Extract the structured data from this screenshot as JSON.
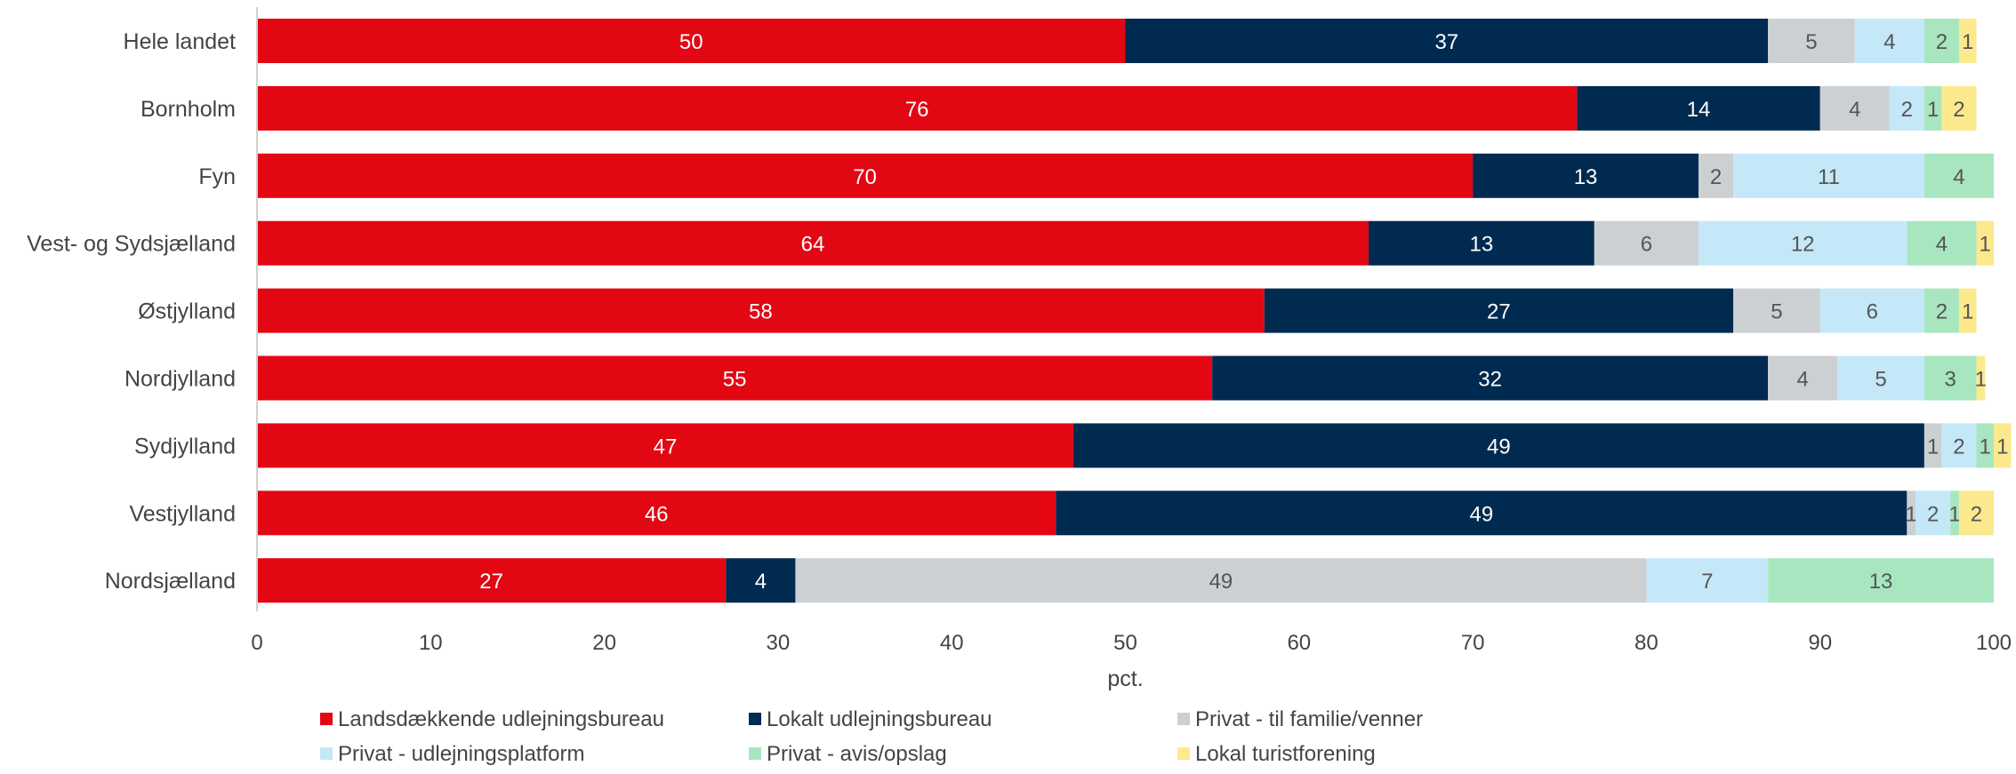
{
  "chart_data": {
    "type": "bar",
    "orientation": "horizontal",
    "stacked": true,
    "categories": [
      "Hele landet",
      "Bornholm",
      "Fyn",
      "Vest- og Sydsjælland",
      "Østjylland",
      "Nordjylland",
      "Sydjylland",
      "Vestjylland",
      "Nordsjælland"
    ],
    "series": [
      {
        "name": "Landsdækkende udlejningsbureau",
        "color": "#e30613",
        "label_color": "#ffffff",
        "values": [
          50,
          76,
          70,
          64,
          58,
          55,
          47,
          46,
          27
        ],
        "labels": [
          "50",
          "76",
          "70",
          "64",
          "58",
          "55",
          "47",
          "46",
          "27"
        ]
      },
      {
        "name": "Lokalt udlejningsbureau",
        "color": "#002a50",
        "label_color": "#ffffff",
        "values": [
          37,
          14,
          13,
          13,
          27,
          32,
          49,
          49,
          4
        ],
        "labels": [
          "37",
          "14",
          "13",
          "13",
          "27",
          "32",
          "49",
          "49",
          "4"
        ]
      },
      {
        "name": "Privat - til familie/venner",
        "color": "#ccd0d2",
        "label_color": "#555555",
        "values": [
          5,
          4,
          2,
          6,
          5,
          4,
          1,
          0.5,
          49
        ],
        "labels": [
          "5",
          "4",
          "2",
          "6",
          "5",
          "4",
          "1",
          "1",
          "49"
        ]
      },
      {
        "name": "Privat -  udlejningsplatform",
        "color": "#c5e8f8",
        "label_color": "#555555",
        "values": [
          4,
          2,
          11,
          12,
          6,
          5,
          2,
          2,
          7
        ],
        "labels": [
          "4",
          "2",
          "11",
          "12",
          "6",
          "5",
          "2",
          "2",
          "7"
        ]
      },
      {
        "name": "Privat - avis/opslag",
        "color": "#a8e6bf",
        "label_color": "#555555",
        "values": [
          2,
          1,
          4,
          4,
          2,
          3,
          1,
          0.5,
          13
        ],
        "labels": [
          "2",
          "1",
          "4",
          "4",
          "2",
          "3",
          "1",
          "1",
          "13"
        ]
      },
      {
        "name": "Lokal turistforening",
        "color": "#fce98e",
        "label_color": "#555555",
        "values": [
          1,
          2,
          0,
          1,
          1,
          0.5,
          1,
          2,
          0
        ],
        "labels": [
          "1",
          "2",
          "",
          "1",
          "1",
          "1",
          "1",
          "2",
          ""
        ]
      }
    ],
    "xlabel": "pct.",
    "xlim": [
      0,
      100
    ],
    "xticks": [
      0,
      10,
      20,
      30,
      40,
      50,
      60,
      70,
      80,
      90,
      100
    ],
    "grid": false,
    "legend_position": "bottom"
  }
}
